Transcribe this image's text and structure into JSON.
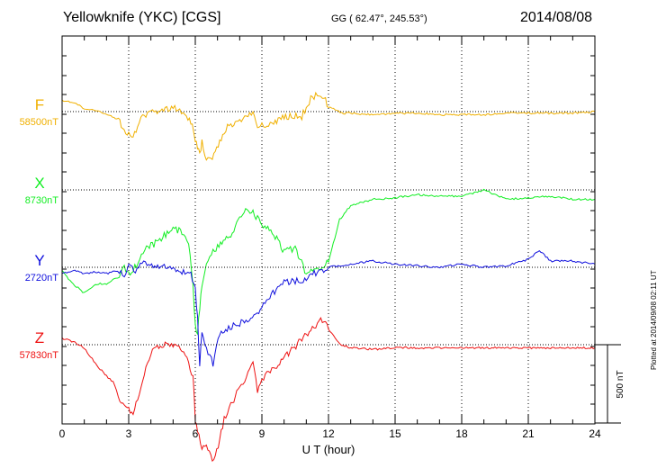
{
  "header": {
    "title": "Yellowknife (YKC)  [CGS]",
    "coords": "GG ( 62.47°, 245.53°)",
    "date": "2014/08/08",
    "plotted": "Plotted at 2014/09/08 02:11  UT"
  },
  "chart_data": {
    "type": "line",
    "xlabel": "U T (hour)",
    "xlim": [
      0,
      24
    ],
    "xticks": [
      "0",
      "3",
      "6",
      "9",
      "12",
      "15",
      "18",
      "21",
      "24"
    ],
    "scale_bar": "500 nT",
    "grid": true,
    "series": [
      {
        "name": "F",
        "baseline": "58500nT",
        "color": "#f0b000",
        "x": [
          0,
          0.5,
          1,
          1.5,
          2,
          2.4,
          2.6,
          2.8,
          3,
          3.2,
          3.4,
          3.7,
          4,
          4.5,
          5,
          5.3,
          5.6,
          5.8,
          6,
          6.1,
          6.2,
          6.3,
          6.5,
          6.7,
          6.9,
          7.1,
          7.3,
          7.6,
          8,
          8.3,
          8.6,
          8.8,
          9,
          9.3,
          9.6,
          10,
          10.4,
          10.8,
          11.2,
          11.5,
          11.8,
          12,
          12.3,
          12.6,
          13,
          14,
          15,
          16,
          17,
          18,
          19,
          20,
          21,
          22,
          23,
          24
        ],
        "y": [
          -70,
          -60,
          -20,
          -10,
          20,
          40,
          70,
          110,
          150,
          180,
          80,
          20,
          0,
          -10,
          -20,
          -10,
          20,
          60,
          180,
          240,
          270,
          200,
          300,
          320,
          260,
          190,
          120,
          80,
          60,
          30,
          0,
          100,
          80,
          80,
          60,
          40,
          30,
          30,
          -80,
          -110,
          -90,
          -30,
          -10,
          10,
          10,
          20,
          10,
          10,
          20,
          20,
          20,
          10,
          10,
          10,
          10,
          0
        ]
      },
      {
        "name": "X",
        "baseline": "8730nT",
        "color": "#11ee22",
        "x": [
          0,
          0.5,
          1,
          1.5,
          2,
          2.5,
          2.8,
          3,
          3.2,
          3.5,
          3.8,
          4.2,
          4.6,
          5,
          5.4,
          5.7,
          5.9,
          6,
          6.1,
          6.2,
          6.3,
          6.5,
          6.8,
          7.2,
          7.6,
          8,
          8.4,
          8.8,
          9.2,
          9.6,
          10,
          10.5,
          11,
          11.5,
          12,
          12.5,
          13,
          13.5,
          14,
          15,
          16,
          17,
          18,
          19,
          20,
          21,
          22,
          23,
          24
        ],
        "y": [
          520,
          600,
          660,
          600,
          600,
          560,
          480,
          540,
          520,
          430,
          370,
          340,
          290,
          240,
          270,
          330,
          600,
          880,
          900,
          750,
          600,
          470,
          400,
          330,
          290,
          170,
          120,
          180,
          240,
          300,
          400,
          370,
          540,
          500,
          460,
          190,
          100,
          80,
          60,
          50,
          30,
          40,
          40,
          0,
          60,
          50,
          40,
          60,
          60
        ]
      },
      {
        "name": "Y",
        "baseline": "2720nT",
        "color": "#1010dd",
        "x": [
          0,
          0.5,
          1,
          1.5,
          2,
          2.5,
          2.8,
          3,
          3.3,
          3.6,
          3.9,
          4.3,
          4.6,
          5,
          5.4,
          5.8,
          6,
          6.1,
          6.2,
          6.3,
          6.5,
          6.8,
          7.1,
          7.5,
          8,
          8.5,
          9,
          9.5,
          10,
          10.5,
          11,
          11.5,
          12,
          13,
          14,
          15,
          16,
          17,
          18,
          19,
          20,
          21,
          21.5,
          22,
          23,
          24
        ],
        "y": [
          40,
          20,
          40,
          30,
          40,
          20,
          60,
          0,
          20,
          -20,
          -20,
          -10,
          0,
          20,
          30,
          50,
          150,
          320,
          630,
          400,
          520,
          620,
          430,
          390,
          360,
          320,
          260,
          160,
          100,
          90,
          70,
          30,
          0,
          -20,
          -40,
          -20,
          -10,
          0,
          -20,
          0,
          -10,
          -50,
          -110,
          -40,
          -40,
          -20
        ]
      },
      {
        "name": "Z",
        "baseline": "57830nT",
        "color": "#ee1111",
        "x": [
          0,
          0.5,
          1,
          1.5,
          2,
          2.3,
          2.6,
          2.8,
          3,
          3.2,
          3.4,
          3.7,
          4,
          4.5,
          5,
          5.4,
          5.7,
          5.9,
          6,
          6.1,
          6.3,
          6.5,
          6.7,
          6.9,
          7.1,
          7.3,
          7.6,
          8,
          8.3,
          8.6,
          8.8,
          9,
          9.3,
          9.6,
          10,
          10.4,
          10.8,
          11.2,
          11.5,
          11.8,
          12,
          12.3,
          12.6,
          13,
          14,
          15,
          16,
          17,
          18,
          19,
          20,
          21,
          22,
          23,
          24
        ],
        "y": [
          -40,
          -20,
          20,
          120,
          200,
          240,
          340,
          380,
          420,
          430,
          340,
          180,
          50,
          0,
          0,
          40,
          120,
          200,
          480,
          560,
          660,
          620,
          720,
          730,
          600,
          470,
          380,
          280,
          200,
          120,
          300,
          230,
          180,
          140,
          80,
          30,
          -40,
          -90,
          -140,
          -160,
          -100,
          -40,
          0,
          20,
          30,
          20,
          20,
          20,
          20,
          20,
          20,
          20,
          20,
          20,
          20
        ]
      }
    ]
  }
}
